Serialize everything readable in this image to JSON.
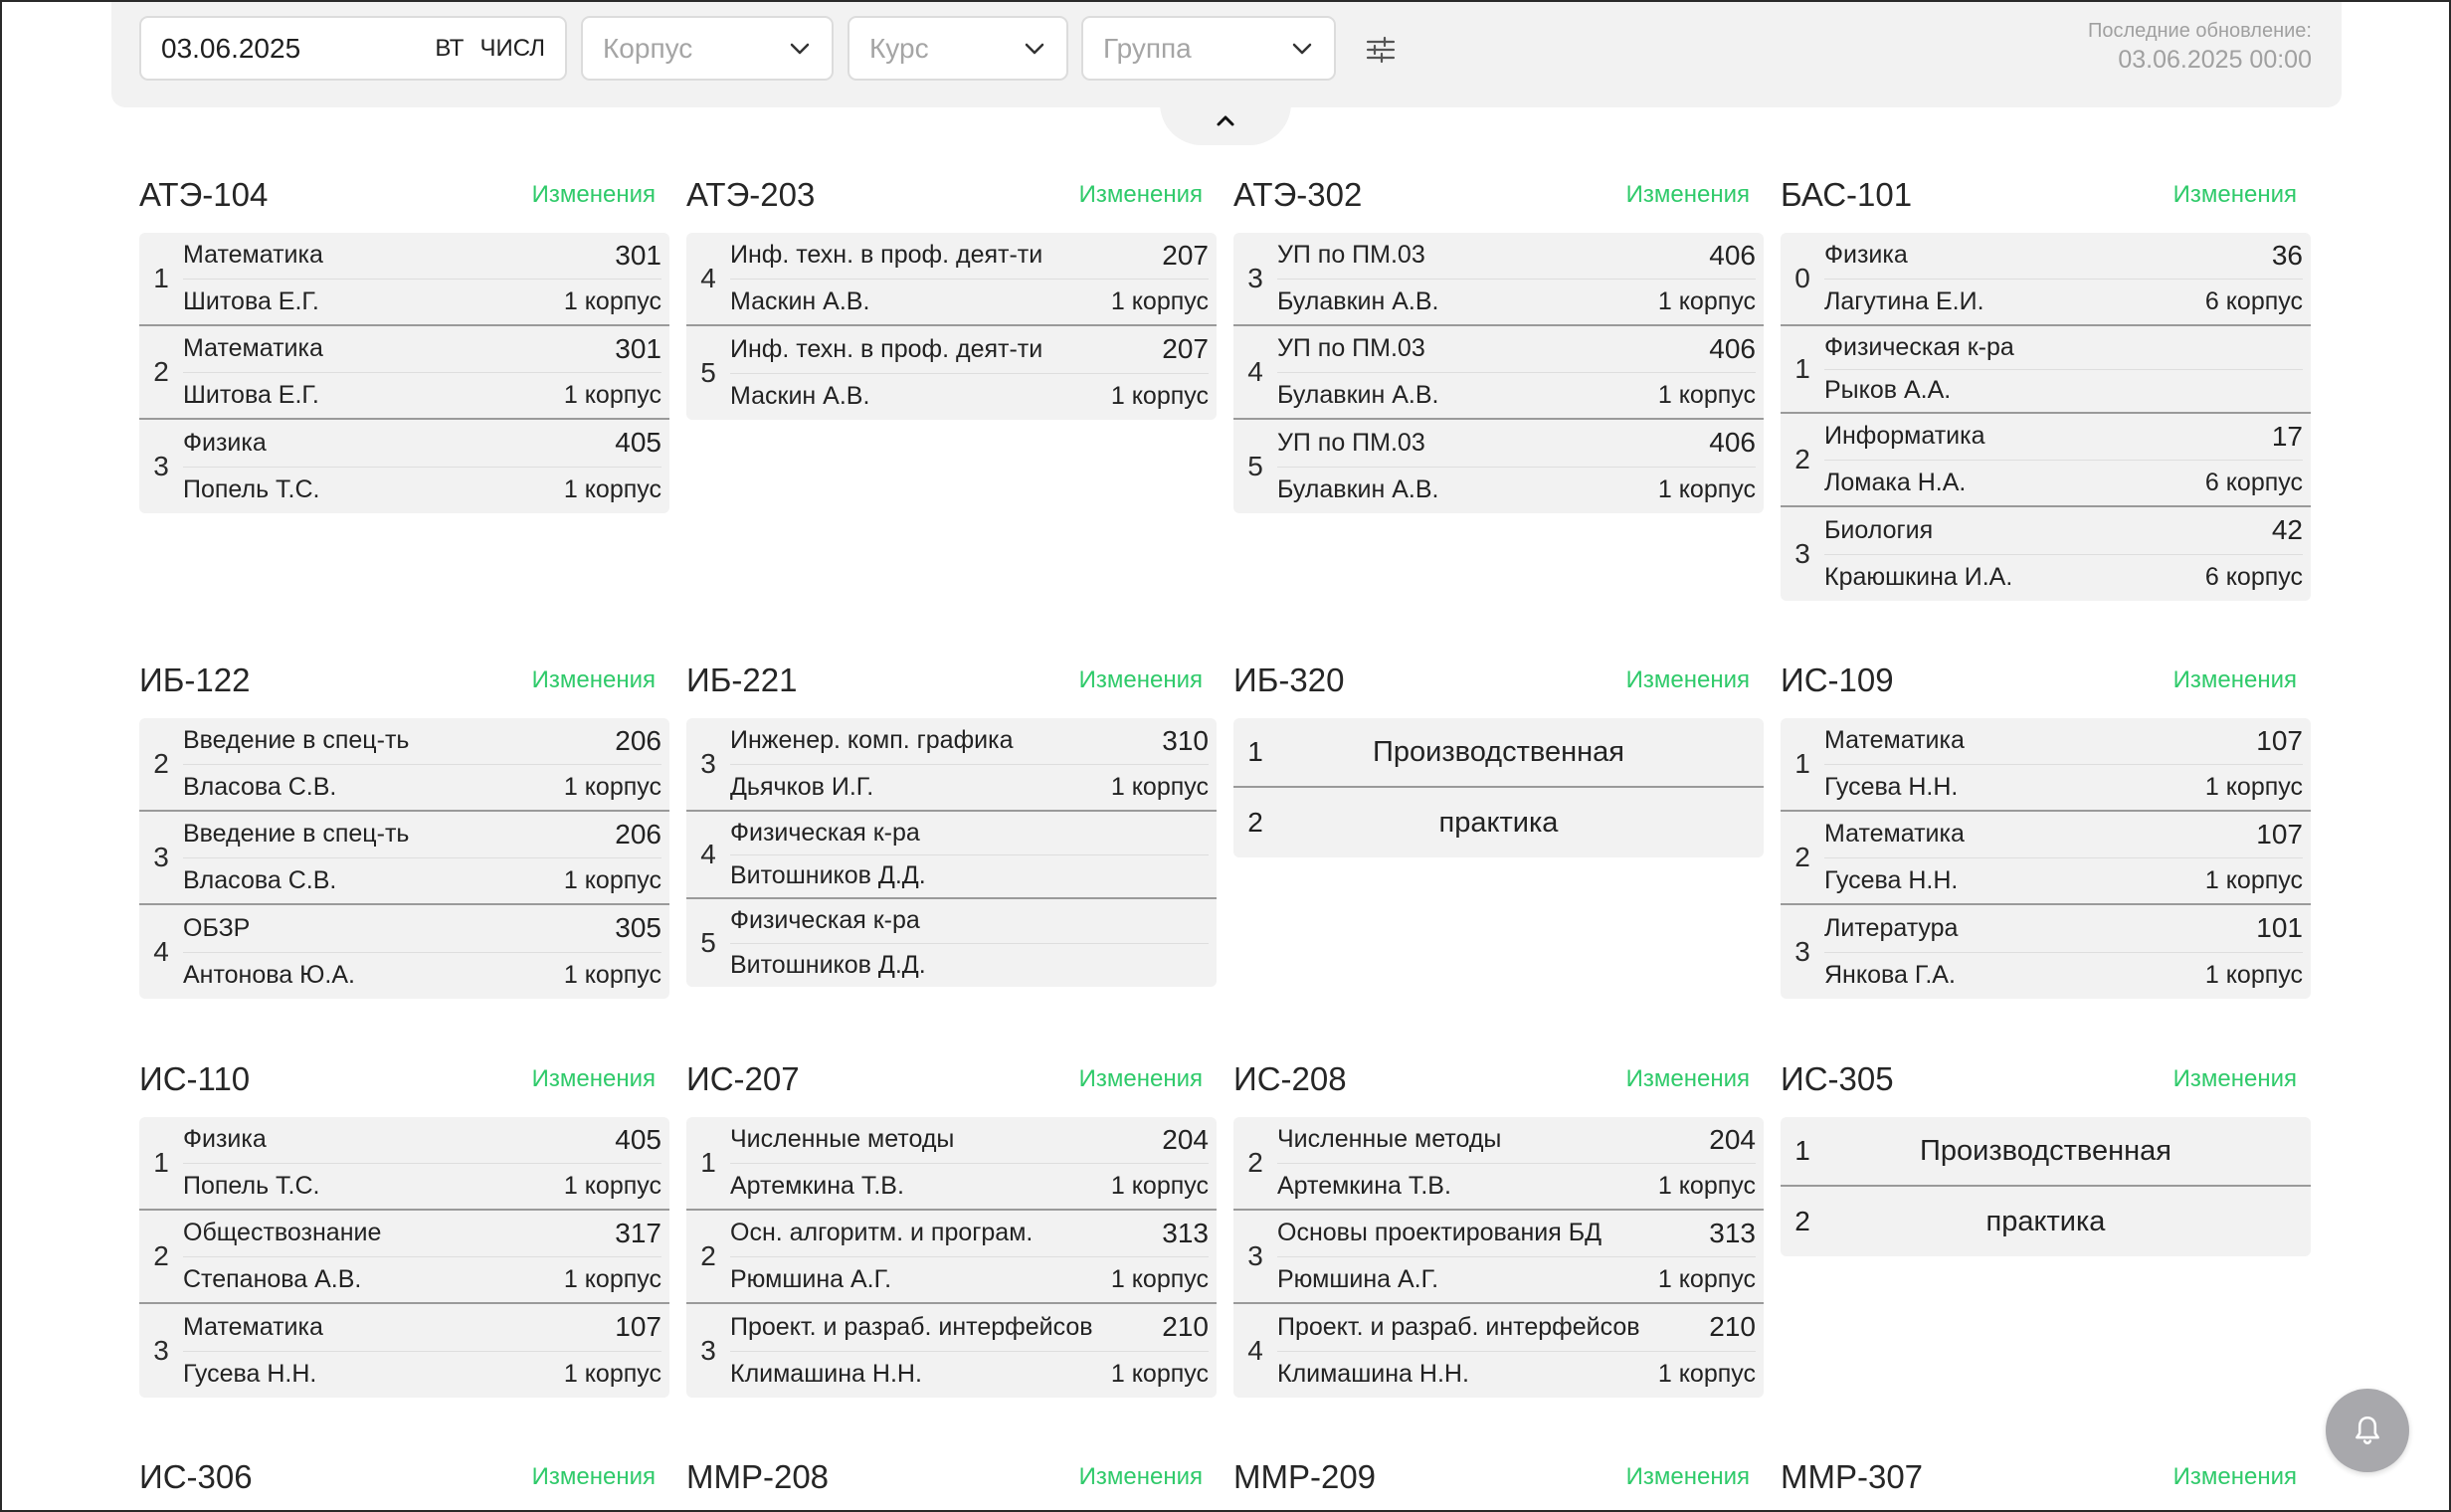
{
  "filters": {
    "date_value": "03.06.2025",
    "weekday": "ВТ",
    "week_type": "ЧИСЛ",
    "korpus_placeholder": "Корпус",
    "kurs_placeholder": "Курс",
    "group_placeholder": "Группа",
    "settings_icon": "sliders-icon"
  },
  "update": {
    "label": "Последние обновление:",
    "time": "03.06.2025 00:00"
  },
  "changes_label": "Изменения",
  "groups": [
    {
      "name": "АТЭ-104",
      "lessons": [
        {
          "num": "1",
          "subject": "Математика",
          "room": "301",
          "teacher": "Шитова Е.Г.",
          "building": "1 корпус"
        },
        {
          "num": "2",
          "subject": "Математика",
          "room": "301",
          "teacher": "Шитова Е.Г.",
          "building": "1 корпус"
        },
        {
          "num": "3",
          "subject": "Физика",
          "room": "405",
          "teacher": "Попель Т.С.",
          "building": "1 корпус"
        }
      ]
    },
    {
      "name": "АТЭ-203",
      "lessons": [
        {
          "num": "4",
          "subject": "Инф. техн. в проф. деят-ти",
          "room": "207",
          "teacher": "Маскин А.В.",
          "building": "1 корпус"
        },
        {
          "num": "5",
          "subject": "Инф. техн. в проф. деят-ти",
          "room": "207",
          "teacher": "Маскин А.В.",
          "building": "1 корпус"
        }
      ]
    },
    {
      "name": "АТЭ-302",
      "lessons": [
        {
          "num": "3",
          "subject": "УП по ПМ.03",
          "room": "406",
          "teacher": "Булавкин А.В.",
          "building": "1 корпус"
        },
        {
          "num": "4",
          "subject": "УП по ПМ.03",
          "room": "406",
          "teacher": "Булавкин А.В.",
          "building": "1 корпус"
        },
        {
          "num": "5",
          "subject": "УП по ПМ.03",
          "room": "406",
          "teacher": "Булавкин А.В.",
          "building": "1 корпус"
        }
      ]
    },
    {
      "name": "БАС-101",
      "lessons": [
        {
          "num": "0",
          "subject": "Физика",
          "room": "36",
          "teacher": "Лагутина Е.И.",
          "building": "6 корпус"
        },
        {
          "num": "1",
          "subject": "Физическая к-ра",
          "room": "",
          "teacher": "Рыков А.А.",
          "building": ""
        },
        {
          "num": "2",
          "subject": "Информатика",
          "room": "17",
          "teacher": "Ломака Н.А.",
          "building": "6 корпус"
        },
        {
          "num": "3",
          "subject": "Биология",
          "room": "42",
          "teacher": "Краюшкина И.А.",
          "building": "6 корпус"
        }
      ]
    },
    {
      "name": "ИБ-122",
      "lessons": [
        {
          "num": "2",
          "subject": "Введение в спец-ть",
          "room": "206",
          "teacher": "Власова С.В.",
          "building": "1 корпус"
        },
        {
          "num": "3",
          "subject": "Введение в спец-ть",
          "room": "206",
          "teacher": "Власова С.В.",
          "building": "1 корпус"
        },
        {
          "num": "4",
          "subject": "ОБЗР",
          "room": "305",
          "teacher": "Антонова Ю.А.",
          "building": "1 корпус"
        }
      ]
    },
    {
      "name": "ИБ-221",
      "lessons": [
        {
          "num": "3",
          "subject": "Инженер. комп. графика",
          "room": "310",
          "teacher": "Дьячков И.Г.",
          "building": "1 корпус"
        },
        {
          "num": "4",
          "subject": "Физическая к-ра",
          "room": "",
          "teacher": "Витошников Д.Д.",
          "building": ""
        },
        {
          "num": "5",
          "subject": "Физическая к-ра",
          "room": "",
          "teacher": "Витошников Д.Д.",
          "building": ""
        }
      ]
    },
    {
      "name": "ИБ-320",
      "practice": [
        {
          "num": "1",
          "text": "Производственная"
        },
        {
          "num": "2",
          "text": "практика"
        }
      ]
    },
    {
      "name": "ИС-109",
      "lessons": [
        {
          "num": "1",
          "subject": "Математика",
          "room": "107",
          "teacher": "Гусева Н.Н.",
          "building": "1 корпус"
        },
        {
          "num": "2",
          "subject": "Математика",
          "room": "107",
          "teacher": "Гусева Н.Н.",
          "building": "1 корпус"
        },
        {
          "num": "3",
          "subject": "Литература",
          "room": "101",
          "teacher": "Янкова Г.А.",
          "building": "1 корпус"
        }
      ]
    },
    {
      "name": "ИС-110",
      "lessons": [
        {
          "num": "1",
          "subject": "Физика",
          "room": "405",
          "teacher": "Попель Т.С.",
          "building": "1 корпус"
        },
        {
          "num": "2",
          "subject": "Обществознание",
          "room": "317",
          "teacher": "Степанова А.В.",
          "building": "1 корпус"
        },
        {
          "num": "3",
          "subject": "Математика",
          "room": "107",
          "teacher": "Гусева Н.Н.",
          "building": "1 корпус"
        }
      ]
    },
    {
      "name": "ИС-207",
      "lessons": [
        {
          "num": "1",
          "subject": "Численные методы",
          "room": "204",
          "teacher": "Артемкина Т.В.",
          "building": "1 корпус"
        },
        {
          "num": "2",
          "subject": "Осн. алгоритм. и програм.",
          "room": "313",
          "teacher": "Рюмшина А.Г.",
          "building": "1 корпус"
        },
        {
          "num": "3",
          "subject": "Проект. и разраб. интерфейсов",
          "room": "210",
          "teacher": "Климашина Н.Н.",
          "building": "1 корпус"
        }
      ]
    },
    {
      "name": "ИС-208",
      "lessons": [
        {
          "num": "2",
          "subject": "Численные методы",
          "room": "204",
          "teacher": "Артемкина Т.В.",
          "building": "1 корпус"
        },
        {
          "num": "3",
          "subject": "Основы проектирования БД",
          "room": "313",
          "teacher": "Рюмшина А.Г.",
          "building": "1 корпус"
        },
        {
          "num": "4",
          "subject": "Проект. и разраб. интерфейсов",
          "room": "210",
          "teacher": "Климашина Н.Н.",
          "building": "1 корпус"
        }
      ]
    },
    {
      "name": "ИС-305",
      "practice": [
        {
          "num": "1",
          "text": "Производственная"
        },
        {
          "num": "2",
          "text": "практика"
        }
      ]
    },
    {
      "name": "ИС-306",
      "lessons": []
    },
    {
      "name": "ММР-208",
      "lessons": []
    },
    {
      "name": "ММР-209",
      "lessons": []
    },
    {
      "name": "ММР-307",
      "lessons": []
    }
  ],
  "colors": {
    "accent_green": "#2fca6a",
    "card_bg": "#f2f2f2",
    "muted_text": "#a0a0a0"
  },
  "icons": {
    "collapse": "chevron-up-icon",
    "notifications": "bell-icon",
    "dropdown": "chevron-down-icon"
  }
}
